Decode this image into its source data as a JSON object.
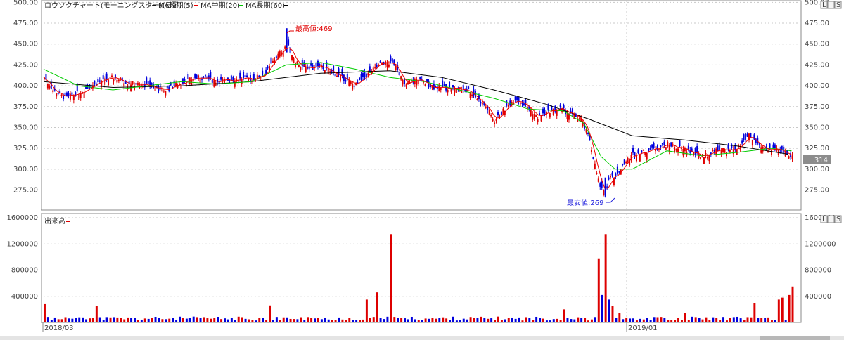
{
  "price_header": {
    "title": "ロウソクチャート(モーニングスター)(日足)",
    "ma_short": "MA短期(5)",
    "ma_mid": "MA中期(20)",
    "ma_long": "MA長期(60)"
  },
  "volume_header": {
    "title": "出来高"
  },
  "current_price_label": "314",
  "annotations": {
    "high": "最高値:469",
    "low": "最安値:269"
  },
  "buttons": [
    "L",
    "I",
    "S"
  ],
  "colors": {
    "up": "#e00000",
    "down": "#0000dd",
    "ma_short": "#ee0000",
    "ma_mid": "#00cc00",
    "ma_long": "#000000",
    "volume": "#dd0000",
    "grid": "#c8c8c8"
  },
  "chart_data": [
    {
      "type": "candlestick",
      "title": "ロウソクチャート(モーニングスター)(日足)",
      "yticks": [
        "500.00",
        "475.00",
        "450.00",
        "425.00",
        "400.00",
        "375.00",
        "350.00",
        "325.00",
        "300.00",
        "275.00"
      ],
      "ylim": [
        251,
        502
      ],
      "xtick_labels": [
        "2018/03",
        "2019/01"
      ],
      "high": 469,
      "low": 269,
      "last": 314,
      "close_path": [
        [
          0,
          410
        ],
        [
          5,
          395
        ],
        [
          12,
          385
        ],
        [
          20,
          392
        ],
        [
          30,
          403
        ],
        [
          40,
          410
        ],
        [
          50,
          403
        ],
        [
          60,
          400
        ],
        [
          70,
          395
        ],
        [
          80,
          405
        ],
        [
          90,
          410
        ],
        [
          100,
          405
        ],
        [
          110,
          408
        ],
        [
          120,
          408
        ],
        [
          128,
          415
        ],
        [
          133,
          432
        ],
        [
          137,
          442
        ],
        [
          140,
          450
        ],
        [
          145,
          430
        ],
        [
          150,
          420
        ],
        [
          160,
          423
        ],
        [
          170,
          412
        ],
        [
          180,
          400
        ],
        [
          186,
          412
        ],
        [
          195,
          428
        ],
        [
          203,
          426
        ],
        [
          208,
          400
        ],
        [
          215,
          408
        ],
        [
          225,
          398
        ],
        [
          235,
          397
        ],
        [
          245,
          395
        ],
        [
          250,
          385
        ],
        [
          255,
          375
        ],
        [
          260,
          358
        ],
        [
          265,
          370
        ],
        [
          272,
          385
        ],
        [
          278,
          377
        ],
        [
          285,
          362
        ],
        [
          292,
          370
        ],
        [
          298,
          372
        ],
        [
          305,
          365
        ],
        [
          310,
          360
        ],
        [
          315,
          335
        ],
        [
          318,
          305
        ],
        [
          321,
          278
        ],
        [
          324,
          270
        ],
        [
          327,
          295
        ],
        [
          330,
          290
        ],
        [
          334,
          305
        ],
        [
          340,
          318
        ],
        [
          350,
          323
        ],
        [
          360,
          330
        ],
        [
          366,
          326
        ],
        [
          372,
          322
        ],
        [
          378,
          316
        ],
        [
          384,
          318
        ],
        [
          390,
          325
        ],
        [
          396,
          322
        ],
        [
          402,
          327
        ],
        [
          407,
          340
        ],
        [
          412,
          330
        ],
        [
          418,
          323
        ],
        [
          424,
          322
        ],
        [
          429,
          320
        ],
        [
          432,
          314
        ]
      ],
      "ma_long_path": [
        [
          0,
          405
        ],
        [
          40,
          398
        ],
        [
          80,
          400
        ],
        [
          120,
          405
        ],
        [
          160,
          415
        ],
        [
          200,
          418
        ],
        [
          230,
          410
        ],
        [
          260,
          395
        ],
        [
          290,
          378
        ],
        [
          315,
          360
        ],
        [
          340,
          340
        ],
        [
          370,
          335
        ],
        [
          400,
          328
        ],
        [
          430,
          318
        ]
      ],
      "ma_mid_path": [
        [
          0,
          420
        ],
        [
          20,
          400
        ],
        [
          40,
          395
        ],
        [
          60,
          400
        ],
        [
          80,
          405
        ],
        [
          100,
          402
        ],
        [
          120,
          405
        ],
        [
          140,
          425
        ],
        [
          160,
          428
        ],
        [
          180,
          420
        ],
        [
          200,
          410
        ],
        [
          220,
          405
        ],
        [
          240,
          395
        ],
        [
          260,
          385
        ],
        [
          280,
          372
        ],
        [
          300,
          370
        ],
        [
          312,
          355
        ],
        [
          322,
          315
        ],
        [
          330,
          300
        ],
        [
          340,
          300
        ],
        [
          360,
          322
        ],
        [
          380,
          316
        ],
        [
          400,
          320
        ],
        [
          420,
          325
        ],
        [
          432,
          322
        ]
      ],
      "candle_count": 433,
      "candle_seed": 7
    },
    {
      "type": "bar",
      "title": "出来高",
      "yticks": [
        "1600000",
        "1200000",
        "800000",
        "400000"
      ],
      "ylim": [
        0,
        1600000
      ],
      "volume_spikes": [
        [
          0,
          280000
        ],
        [
          1,
          200000
        ],
        [
          30,
          250000
        ],
        [
          130,
          260000
        ],
        [
          186,
          350000
        ],
        [
          193,
          460000
        ],
        [
          200,
          1350000
        ],
        [
          201,
          470000
        ],
        [
          300,
          200000
        ],
        [
          320,
          980000
        ],
        [
          322,
          420000
        ],
        [
          324,
          1350000
        ],
        [
          326,
          350000
        ],
        [
          328,
          250000
        ],
        [
          332,
          150000
        ],
        [
          370,
          150000
        ],
        [
          410,
          300000
        ],
        [
          425,
          350000
        ],
        [
          427,
          380000
        ],
        [
          430,
          420000
        ],
        [
          432,
          550000
        ]
      ],
      "volume_base": 60000
    }
  ]
}
